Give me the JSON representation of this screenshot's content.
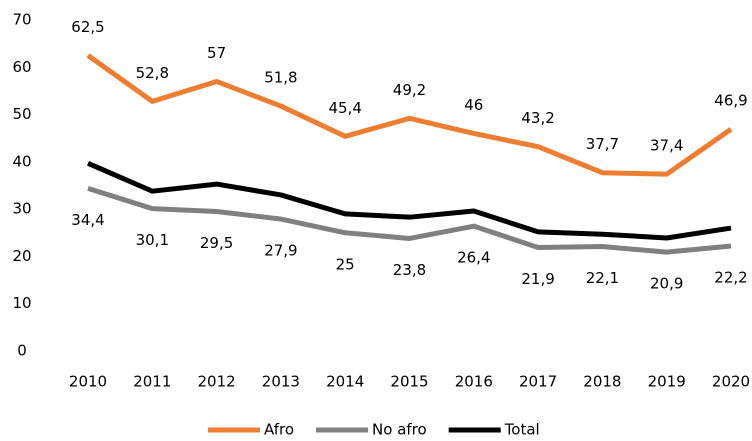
{
  "chart_data": {
    "type": "line",
    "categories": [
      "2010",
      "2011",
      "2012",
      "2013",
      "2014",
      "2015",
      "2016",
      "2017",
      "2018",
      "2019",
      "2020"
    ],
    "series": [
      {
        "name": "Afro",
        "color": "#ed7d31",
        "values": [
          62.5,
          52.8,
          57,
          51.8,
          45.4,
          49.2,
          46,
          43.2,
          37.7,
          37.4,
          46.9
        ],
        "value_labels": [
          "62,5",
          "52,8",
          "57",
          "51,8",
          "45,4",
          "49,2",
          "46",
          "43,2",
          "37,7",
          "37,4",
          "46,9"
        ]
      },
      {
        "name": "No afro",
        "color": "#808080",
        "values": [
          34.4,
          30.1,
          29.5,
          27.9,
          25,
          23.8,
          26.4,
          21.9,
          22.1,
          20.9,
          22.2
        ],
        "value_labels": [
          "34,4",
          "30,1",
          "29,5",
          "27,9",
          "25",
          "23,8",
          "26,4",
          "21,9",
          "22,1",
          "20,9",
          "22,2"
        ]
      },
      {
        "name": "Total",
        "color": "#000000",
        "values": [
          39.7,
          33.8,
          35.3,
          33,
          29,
          28.3,
          29.6,
          25.2,
          24.7,
          23.9,
          26
        ]
      }
    ],
    "ylim": [
      0,
      70
    ],
    "yticks": [
      0,
      10,
      20,
      30,
      40,
      50,
      60,
      70
    ],
    "grid": false,
    "legend": "bottom"
  }
}
